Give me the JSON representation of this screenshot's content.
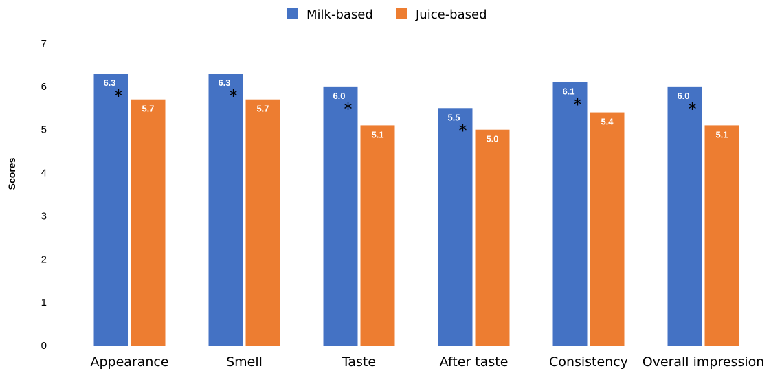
{
  "chart_data": {
    "type": "bar",
    "ylabel": "Scores",
    "xlabel": "",
    "ylim": [
      0,
      7
    ],
    "yticks": [
      "0",
      "1",
      "2",
      "3",
      "4",
      "5",
      "6",
      "7"
    ],
    "grid": false,
    "legend_position": "top-center",
    "categories": [
      "Appearance",
      "Smell",
      "Taste",
      "After taste",
      "Consistency",
      "Overall impression"
    ],
    "series": [
      {
        "name": "Milk-based",
        "color": "#4472C4",
        "values": [
          6.3,
          6.3,
          6.0,
          5.5,
          6.1,
          6.0
        ],
        "labels": [
          "6.3",
          "6.3",
          "6.0",
          "5.5",
          "6.1",
          "6.0"
        ],
        "significance_marker": "*"
      },
      {
        "name": "Juice-based",
        "color": "#ED7D31",
        "values": [
          5.7,
          5.7,
          5.1,
          5.0,
          5.4,
          5.1
        ],
        "labels": [
          "5.7",
          "5.7",
          "5.1",
          "5.0",
          "5.4",
          "5.1"
        ]
      }
    ]
  }
}
